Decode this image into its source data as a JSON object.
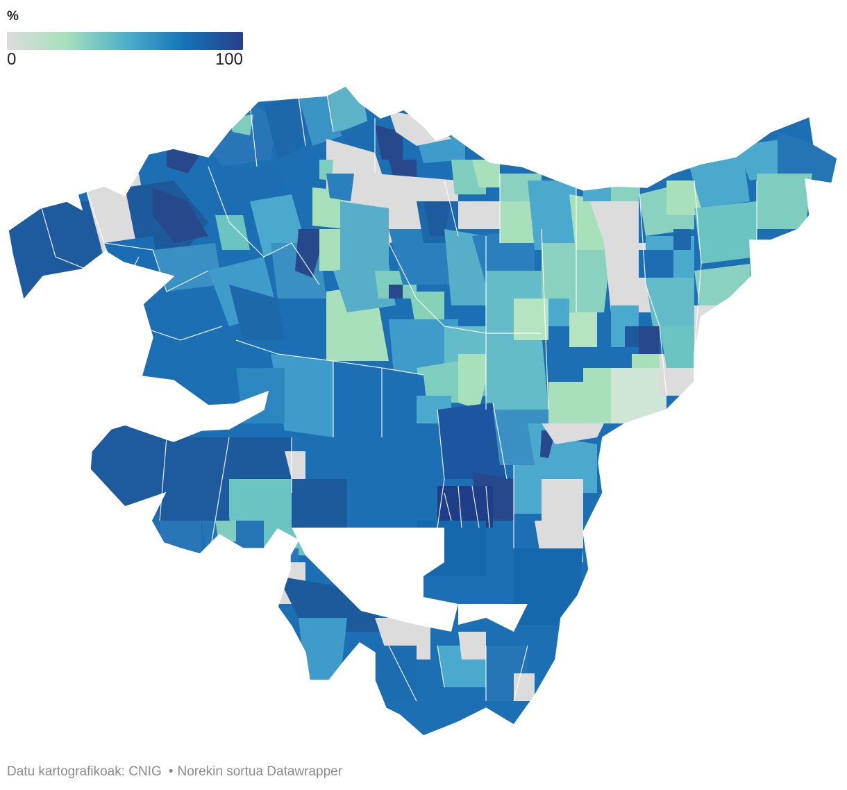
{
  "legend": {
    "unit": "%",
    "min_label": "0",
    "max_label": "100",
    "scale": {
      "min": 0,
      "max": 100,
      "no_data_color": "#dcdcdc",
      "stops": [
        "#dcdcdc",
        "#a8e0bb",
        "#4fb0c8",
        "#1474b8",
        "#283f8a"
      ]
    }
  },
  "footer": {
    "source": "Datu kartografikoak: CNIG",
    "separator": "•",
    "credit": "Norekin sortua Datawrapper"
  },
  "colors": {
    "background": "#ffffff",
    "border": "#ffffff",
    "footer_text": "#8a8a8a"
  }
}
